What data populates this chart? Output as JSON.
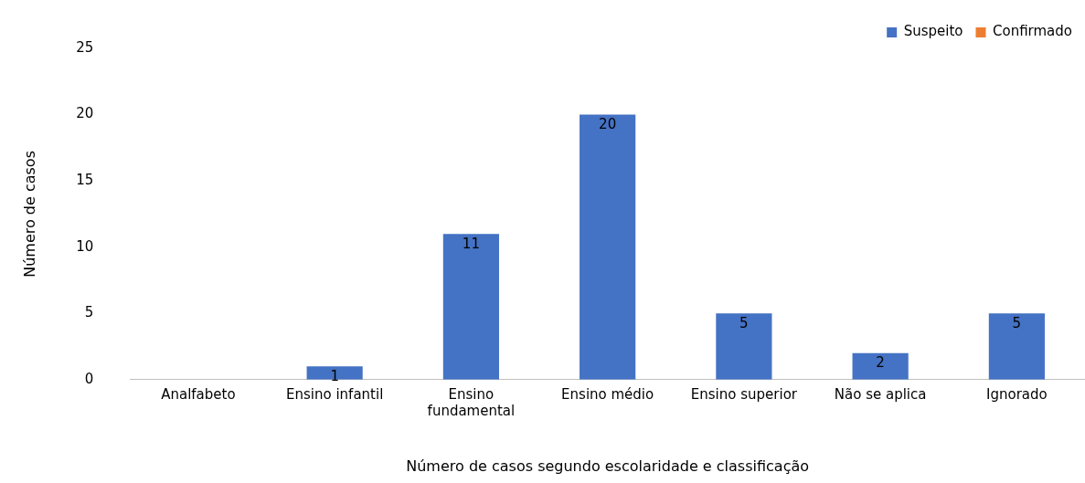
{
  "chart_data": {
    "type": "bar",
    "xlabel": "Número de casos segundo escolaridade e classificação",
    "ylabel": "Número de casos",
    "categories": [
      "Analfabeto",
      "Ensino infantil",
      "Ensino fundamental",
      "Ensino médio",
      "Ensino superior",
      "Não se aplica",
      "Ignorado"
    ],
    "series": [
      {
        "name": "Suspeito",
        "color": "#4472c4",
        "values": [
          0,
          1,
          11,
          20,
          5,
          2,
          5
        ],
        "value_labels": [
          null,
          "1",
          "11",
          "20",
          "5",
          "2",
          "5"
        ]
      },
      {
        "name": "Confirmado",
        "color": "#ed7d31",
        "values": [
          0,
          0,
          0,
          0,
          0,
          0,
          0
        ]
      }
    ],
    "ylim": [
      0,
      25
    ],
    "yticks": [
      0,
      5,
      10,
      15,
      20,
      25
    ],
    "grid": false,
    "legend": "top right"
  }
}
